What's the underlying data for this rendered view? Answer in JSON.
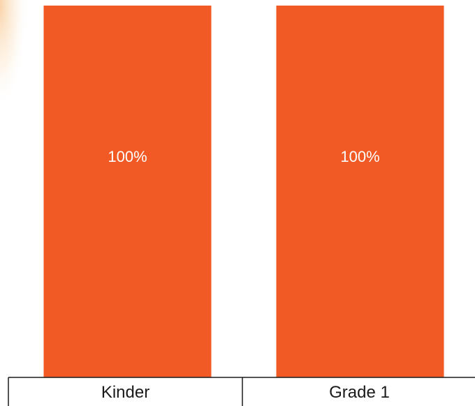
{
  "chart_data": {
    "type": "bar",
    "categories": [
      "Kinder",
      "Grade 1"
    ],
    "values": [
      100,
      100
    ],
    "data_labels": [
      "100%",
      "100%"
    ],
    "ylim": [
      0,
      100
    ],
    "title": "",
    "xlabel": "",
    "ylabel": "",
    "grid": false,
    "legend": "none",
    "colors": {
      "bar": "#F15A24",
      "axis": "#1a1a1a",
      "label": "#ffffff",
      "glow": "#F7C48C"
    }
  }
}
